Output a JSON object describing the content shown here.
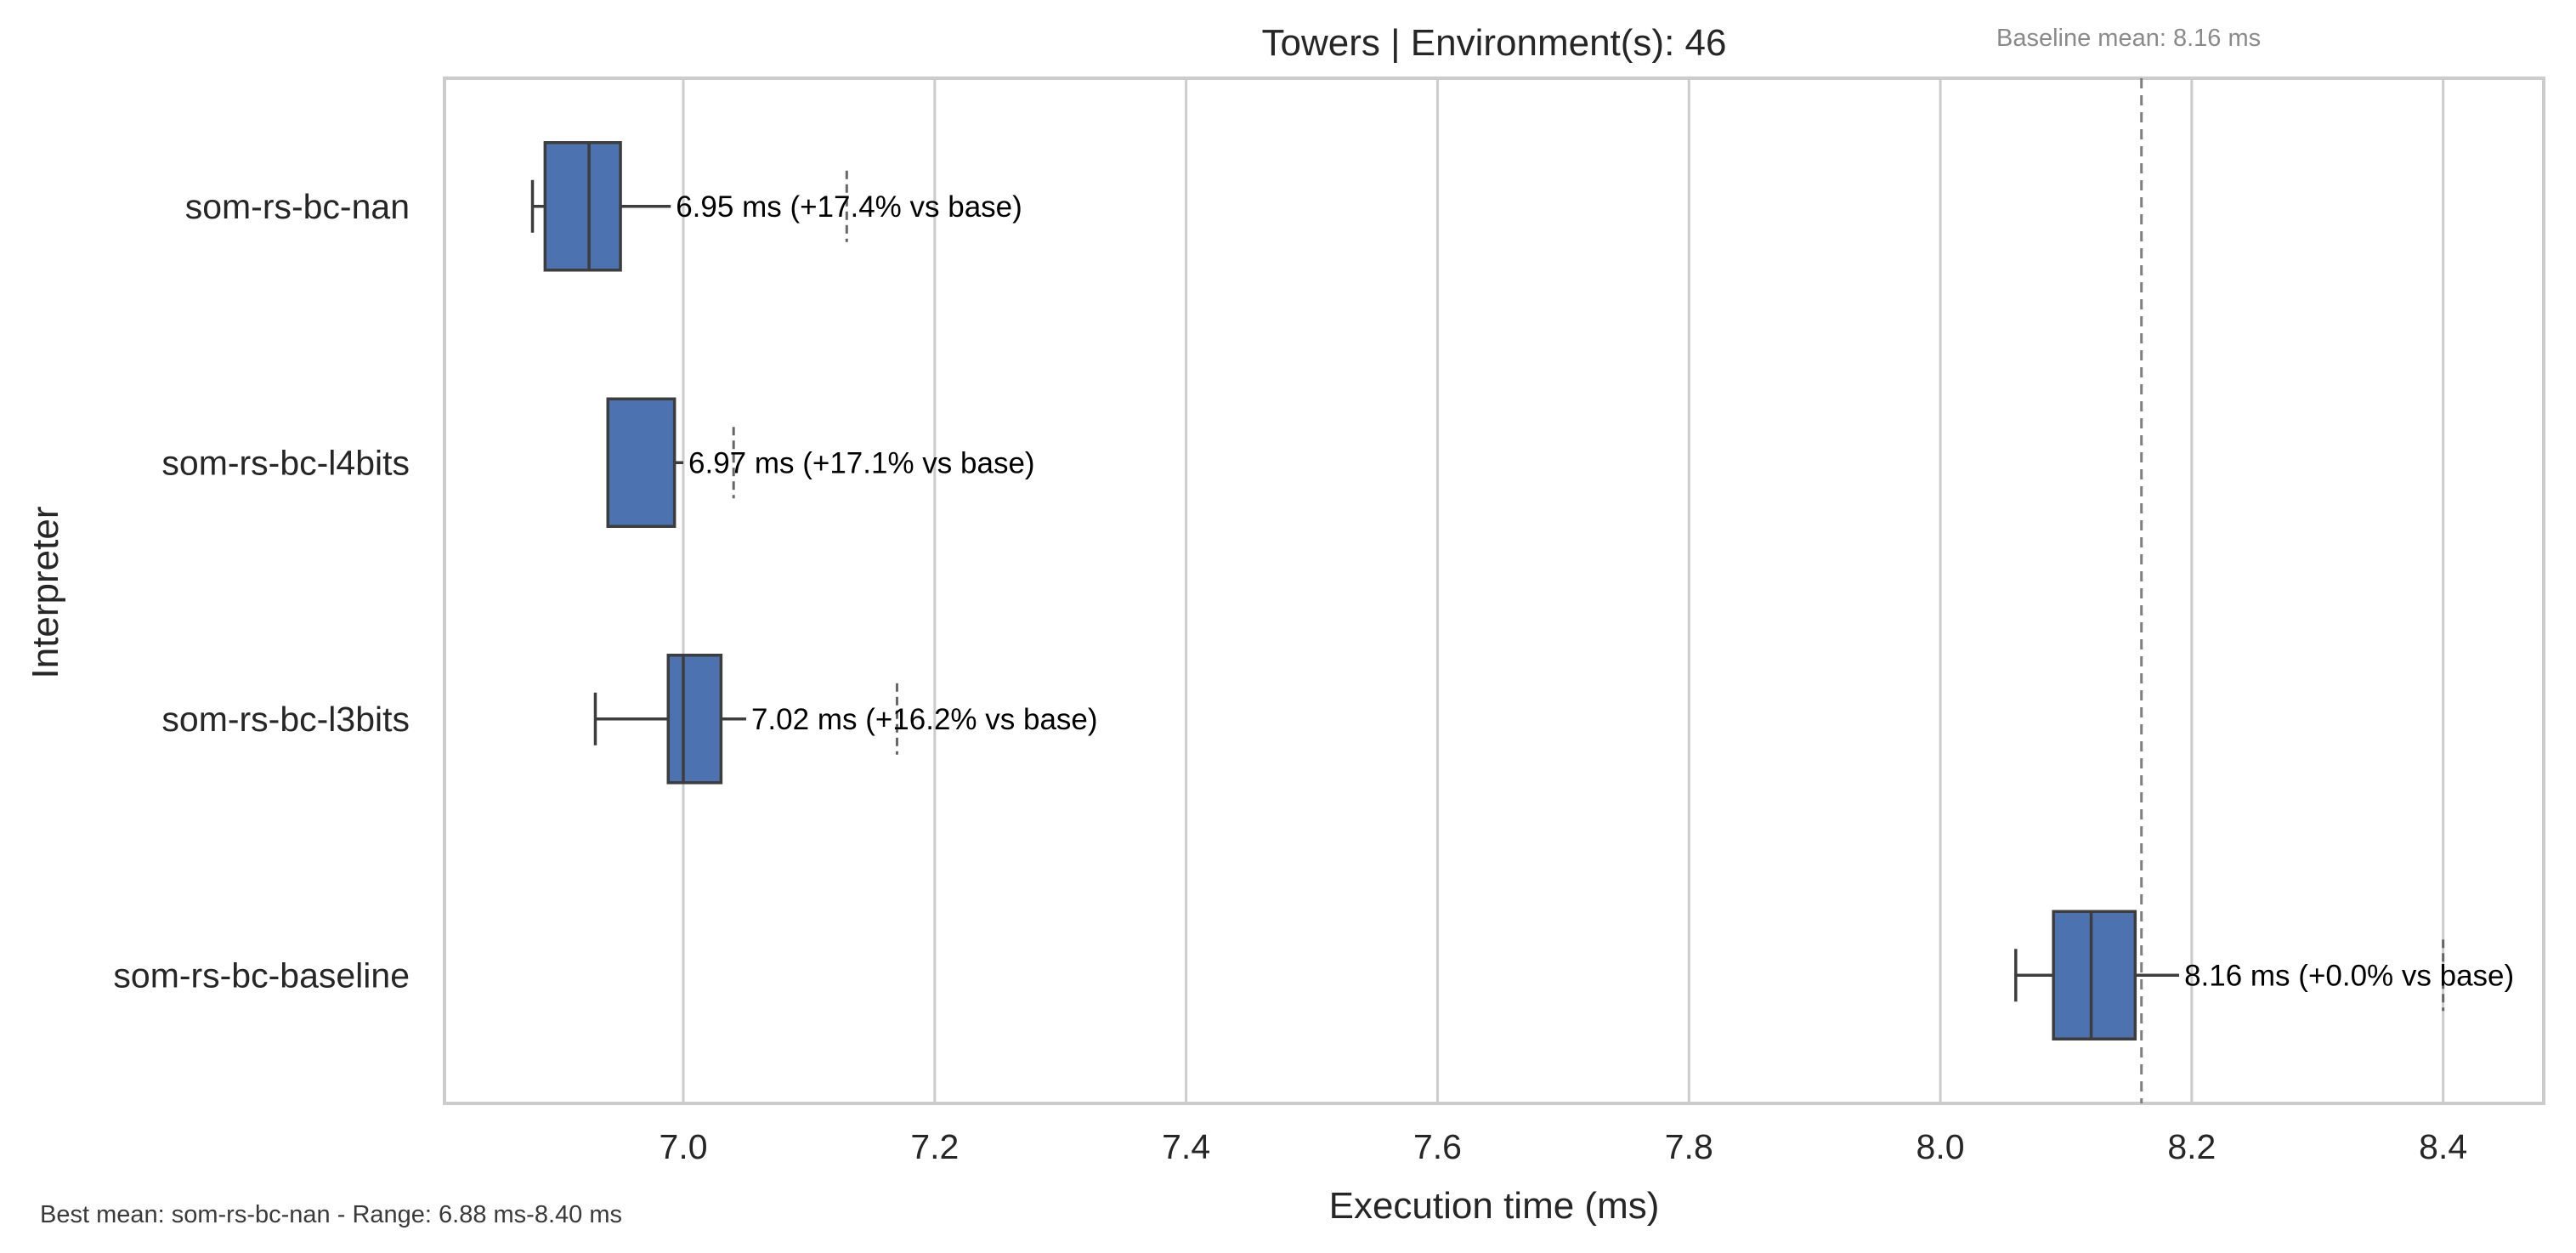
{
  "chart_data": {
    "type": "boxplot",
    "orientation": "horizontal",
    "title": "Towers | Environment(s): 46",
    "xlabel": "Execution time (ms)",
    "ylabel": "Interpreter",
    "xlim": [
      6.81,
      8.48
    ],
    "xticks": [
      7.0,
      7.2,
      7.4,
      7.6,
      7.8,
      8.0,
      8.2,
      8.4
    ],
    "xtick_labels": [
      "7.0",
      "7.2",
      "7.4",
      "7.6",
      "7.8",
      "8.0",
      "8.2",
      "8.4"
    ],
    "grid": true,
    "categories": [
      "som-rs-bc-nan",
      "som-rs-bc-l4bits",
      "som-rs-bc-l3bits",
      "som-rs-bc-baseline"
    ],
    "series": [
      {
        "category": "som-rs-bc-nan",
        "box": {
          "min": 6.88,
          "q1": 6.89,
          "median": 6.925,
          "q3": 6.95,
          "max": 6.99
        },
        "marker": 7.13,
        "annotation": "6.95 ms  (+17.4% vs base)"
      },
      {
        "category": "som-rs-bc-l4bits",
        "box": {
          "min": 6.94,
          "q1": 6.94,
          "median": 6.94,
          "q3": 6.993,
          "max": 7.0
        },
        "marker": 7.04,
        "annotation": "6.97 ms  (+17.1% vs base)"
      },
      {
        "category": "som-rs-bc-l3bits",
        "box": {
          "min": 6.93,
          "q1": 6.988,
          "median": 7.0,
          "q3": 7.03,
          "max": 7.05
        },
        "marker": 7.17,
        "annotation": "7.02 ms  (+16.2% vs base)"
      },
      {
        "category": "som-rs-bc-baseline",
        "box": {
          "min": 8.06,
          "q1": 8.09,
          "median": 8.12,
          "q3": 8.155,
          "max": 8.19
        },
        "marker": 8.4,
        "annotation": "8.16 ms  (+0.0% vs base)"
      }
    ],
    "baseline": {
      "value": 8.16,
      "label": "Baseline mean: 8.16 ms"
    },
    "footer": "Best mean: som-rs-bc-nan - Range: 6.88 ms-8.40 ms"
  }
}
